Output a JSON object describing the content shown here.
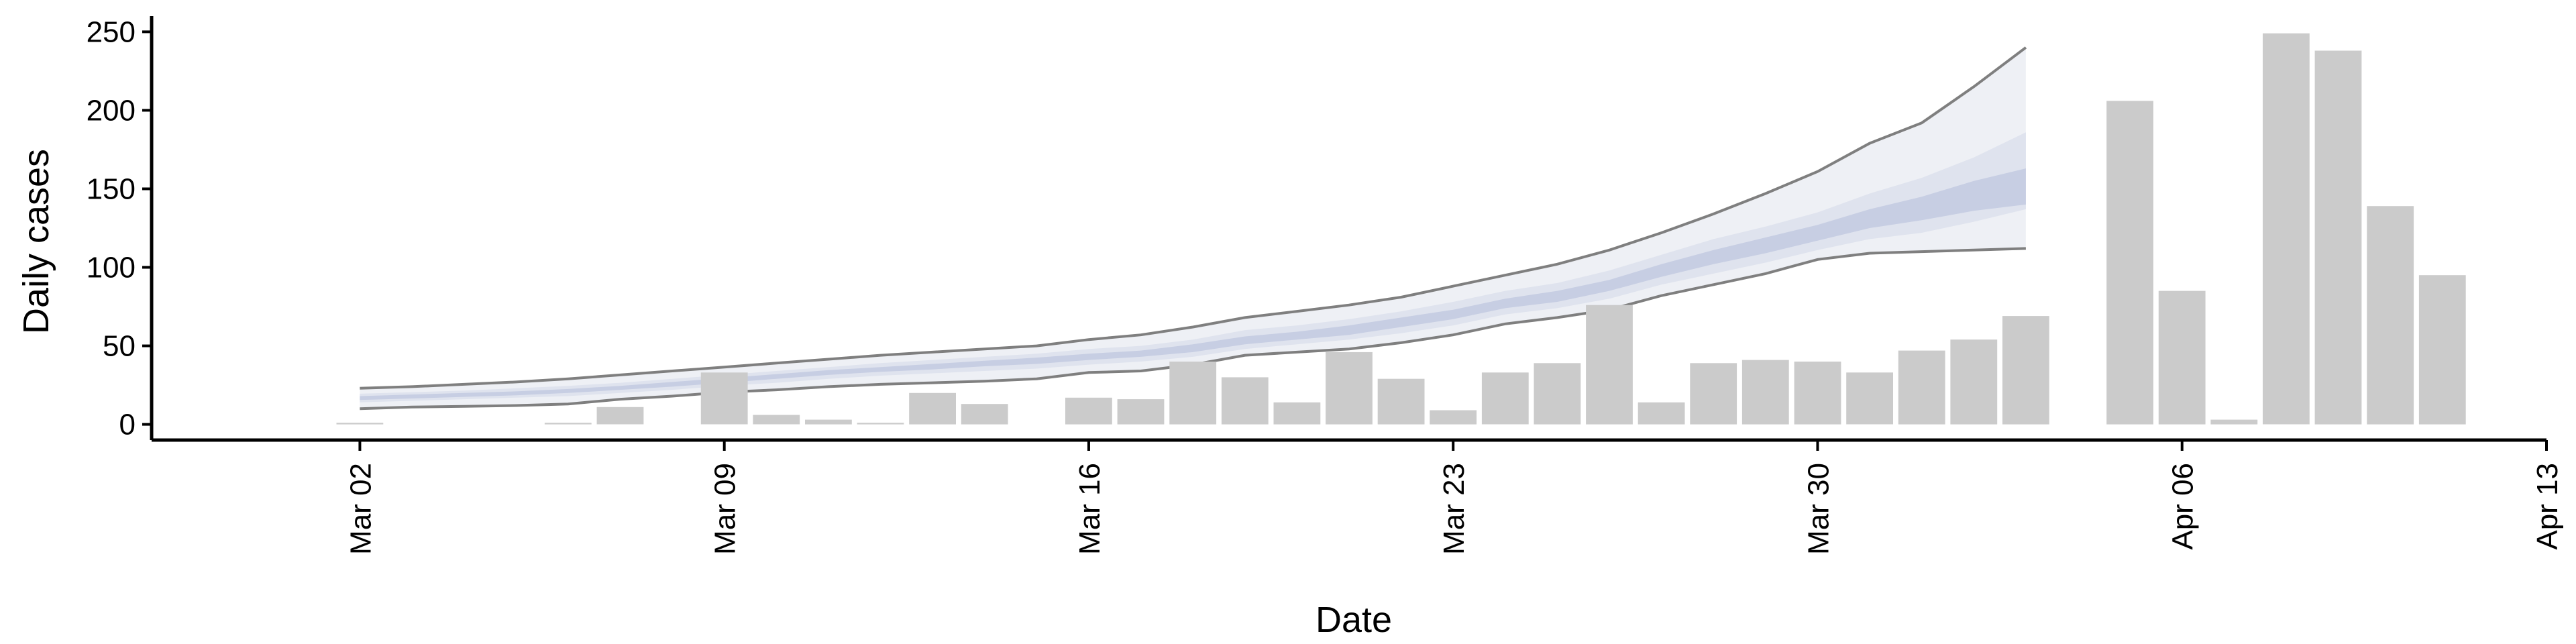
{
  "chart_data": {
    "type": "bar",
    "title": "",
    "xlabel": "Date",
    "ylabel": "Daily cases",
    "ylim": [
      -10,
      260
    ],
    "y_ticks": [
      0,
      50,
      100,
      150,
      200,
      250
    ],
    "x_ticks": [
      {
        "date": "2020-03-02",
        "label": "Mar 02"
      },
      {
        "date": "2020-03-09",
        "label": "Mar 09"
      },
      {
        "date": "2020-03-16",
        "label": "Mar 16"
      },
      {
        "date": "2020-03-23",
        "label": "Mar 23"
      },
      {
        "date": "2020-03-30",
        "label": "Mar 30"
      },
      {
        "date": "2020-04-06",
        "label": "Apr 06"
      },
      {
        "date": "2020-04-13",
        "label": "Apr 13"
      }
    ],
    "xlim": [
      "2020-02-27",
      "2020-04-13"
    ],
    "grid": false,
    "legend": "none",
    "colors": {
      "bars": "#cbcbcb",
      "outer_band": "#eef0f5",
      "mid_band": "#dfe3ee",
      "inner_band": "#c7cee3",
      "band_edge": "#7f7f7f",
      "band_edge_faded": "#cfcfcf",
      "axis": "#000000"
    },
    "observed": [
      {
        "date": "2020-03-02",
        "value": 1
      },
      {
        "date": "2020-03-06",
        "value": 1
      },
      {
        "date": "2020-03-07",
        "value": 11
      },
      {
        "date": "2020-03-09",
        "value": 33
      },
      {
        "date": "2020-03-10",
        "value": 6
      },
      {
        "date": "2020-03-11",
        "value": 3
      },
      {
        "date": "2020-03-12",
        "value": 1
      },
      {
        "date": "2020-03-13",
        "value": 20
      },
      {
        "date": "2020-03-14",
        "value": 13
      },
      {
        "date": "2020-03-16",
        "value": 17
      },
      {
        "date": "2020-03-17",
        "value": 16
      },
      {
        "date": "2020-03-18",
        "value": 40
      },
      {
        "date": "2020-03-19",
        "value": 30
      },
      {
        "date": "2020-03-20",
        "value": 14
      },
      {
        "date": "2020-03-21",
        "value": 46
      },
      {
        "date": "2020-03-22",
        "value": 29
      },
      {
        "date": "2020-03-23",
        "value": 9
      },
      {
        "date": "2020-03-24",
        "value": 33
      },
      {
        "date": "2020-03-25",
        "value": 39
      },
      {
        "date": "2020-03-26",
        "value": 76
      },
      {
        "date": "2020-03-27",
        "value": 14
      },
      {
        "date": "2020-03-28",
        "value": 39
      },
      {
        "date": "2020-03-29",
        "value": 41
      },
      {
        "date": "2020-03-30",
        "value": 40
      },
      {
        "date": "2020-03-31",
        "value": 33
      },
      {
        "date": "2020-04-01",
        "value": 47
      },
      {
        "date": "2020-04-02",
        "value": 54
      },
      {
        "date": "2020-04-03",
        "value": 69
      },
      {
        "date": "2020-04-05",
        "value": 206
      },
      {
        "date": "2020-04-06",
        "value": 85
      },
      {
        "date": "2020-04-07",
        "value": 3
      },
      {
        "date": "2020-04-08",
        "value": 249
      },
      {
        "date": "2020-04-09",
        "value": 238
      },
      {
        "date": "2020-04-10",
        "value": 139
      },
      {
        "date": "2020-04-11",
        "value": 95
      }
    ],
    "estimate_band": [
      {
        "date": "2020-03-02",
        "lower90": 10,
        "lower50": 14,
        "lower20": 15.5,
        "upper20": 18,
        "upper50": 19.5,
        "upper90": 23
      },
      {
        "date": "2020-03-03",
        "lower90": 11,
        "lower50": 15,
        "lower20": 16.5,
        "upper20": 19,
        "upper50": 20.5,
        "upper90": 24
      },
      {
        "date": "2020-03-04",
        "lower90": 11.5,
        "lower50": 16,
        "lower20": 17.5,
        "upper20": 20,
        "upper50": 21.5,
        "upper90": 25.5
      },
      {
        "date": "2020-03-05",
        "lower90": 12,
        "lower50": 17,
        "lower20": 18.5,
        "upper20": 21,
        "upper50": 23,
        "upper90": 27
      },
      {
        "date": "2020-03-06",
        "lower90": 13,
        "lower50": 18,
        "lower20": 20,
        "upper20": 22.5,
        "upper50": 24.5,
        "upper90": 29
      },
      {
        "date": "2020-03-07",
        "lower90": 16,
        "lower50": 20,
        "lower20": 22,
        "upper20": 24.5,
        "upper50": 26.5,
        "upper90": 31.5
      },
      {
        "date": "2020-03-08",
        "lower90": 18,
        "lower50": 22,
        "lower20": 24,
        "upper20": 27,
        "upper50": 29,
        "upper90": 34
      },
      {
        "date": "2020-03-09",
        "lower90": 20.5,
        "lower50": 24.5,
        "lower20": 26.5,
        "upper20": 29.5,
        "upper50": 31.5,
        "upper90": 36.5
      },
      {
        "date": "2020-03-10",
        "lower90": 22,
        "lower50": 26.5,
        "lower20": 29,
        "upper20": 32,
        "upper50": 34,
        "upper90": 39
      },
      {
        "date": "2020-03-11",
        "lower90": 24,
        "lower50": 29,
        "lower20": 31.5,
        "upper20": 34.5,
        "upper50": 36.5,
        "upper90": 41.5
      },
      {
        "date": "2020-03-12",
        "lower90": 25.5,
        "lower50": 31,
        "lower20": 33.5,
        "upper20": 36.5,
        "upper50": 39,
        "upper90": 44
      },
      {
        "date": "2020-03-13",
        "lower90": 26.5,
        "lower50": 32.5,
        "lower20": 35,
        "upper20": 38.5,
        "upper50": 41,
        "upper90": 46
      },
      {
        "date": "2020-03-14",
        "lower90": 27.5,
        "lower50": 34,
        "lower20": 37,
        "upper20": 40.5,
        "upper50": 43,
        "upper90": 48
      },
      {
        "date": "2020-03-15",
        "lower90": 29,
        "lower50": 35.5,
        "lower20": 38.5,
        "upper20": 42.5,
        "upper50": 45,
        "upper90": 50
      },
      {
        "date": "2020-03-16",
        "lower90": 33,
        "lower50": 38,
        "lower20": 41,
        "upper20": 45,
        "upper50": 48,
        "upper90": 54
      },
      {
        "date": "2020-03-17",
        "lower90": 34,
        "lower50": 40,
        "lower20": 43,
        "upper20": 47,
        "upper50": 50,
        "upper90": 57
      },
      {
        "date": "2020-03-18",
        "lower90": 38,
        "lower50": 43,
        "lower20": 46,
        "upper20": 51,
        "upper50": 54,
        "upper90": 62
      },
      {
        "date": "2020-03-19",
        "lower90": 44,
        "lower50": 48,
        "lower20": 51,
        "upper20": 56,
        "upper50": 60,
        "upper90": 68
      },
      {
        "date": "2020-03-20",
        "lower90": 46,
        "lower50": 51,
        "lower20": 54,
        "upper20": 59,
        "upper50": 63,
        "upper90": 72
      },
      {
        "date": "2020-03-21",
        "lower90": 48,
        "lower50": 54,
        "lower20": 57,
        "upper20": 63,
        "upper50": 67,
        "upper90": 76
      },
      {
        "date": "2020-03-22",
        "lower90": 52,
        "lower50": 58,
        "lower20": 62,
        "upper20": 68,
        "upper50": 72,
        "upper90": 81
      },
      {
        "date": "2020-03-23",
        "lower90": 57,
        "lower50": 63,
        "lower20": 67,
        "upper20": 73,
        "upper50": 78,
        "upper90": 88
      },
      {
        "date": "2020-03-24",
        "lower90": 64,
        "lower50": 70,
        "lower20": 74,
        "upper20": 80,
        "upper50": 85,
        "upper90": 95
      },
      {
        "date": "2020-03-25",
        "lower90": 68,
        "lower50": 74,
        "lower20": 78,
        "upper20": 85,
        "upper50": 90,
        "upper90": 102
      },
      {
        "date": "2020-03-26",
        "lower90": 73,
        "lower50": 80,
        "lower20": 85,
        "upper20": 92,
        "upper50": 98,
        "upper90": 111
      },
      {
        "date": "2020-03-27",
        "lower90": 82,
        "lower50": 89,
        "lower20": 94,
        "upper20": 102,
        "upper50": 108,
        "upper90": 122
      },
      {
        "date": "2020-03-28",
        "lower90": 89,
        "lower50": 96,
        "lower20": 102,
        "upper20": 111,
        "upper50": 118,
        "upper90": 134
      },
      {
        "date": "2020-03-29",
        "lower90": 96,
        "lower50": 103,
        "lower20": 109,
        "upper20": 119,
        "upper50": 126,
        "upper90": 147
      },
      {
        "date": "2020-03-30",
        "lower90": 105,
        "lower50": 111,
        "lower20": 117,
        "upper20": 127,
        "upper50": 135,
        "upper90": 161
      },
      {
        "date": "2020-03-31",
        "lower90": 109,
        "lower50": 118,
        "lower20": 125,
        "upper20": 137,
        "upper50": 147,
        "upper90": 179
      },
      {
        "date": "2020-04-01",
        "lower90": 110,
        "lower50": 122,
        "lower20": 130,
        "upper20": 145,
        "upper50": 157,
        "upper90": 192
      },
      {
        "date": "2020-04-02",
        "lower90": 111,
        "lower50": 129,
        "lower20": 136,
        "upper20": 155,
        "upper50": 170,
        "upper90": 215
      },
      {
        "date": "2020-04-03",
        "lower90": 112,
        "lower50": 137,
        "lower20": 140,
        "upper20": 163,
        "upper50": 186,
        "upper90": 240
      }
    ]
  }
}
